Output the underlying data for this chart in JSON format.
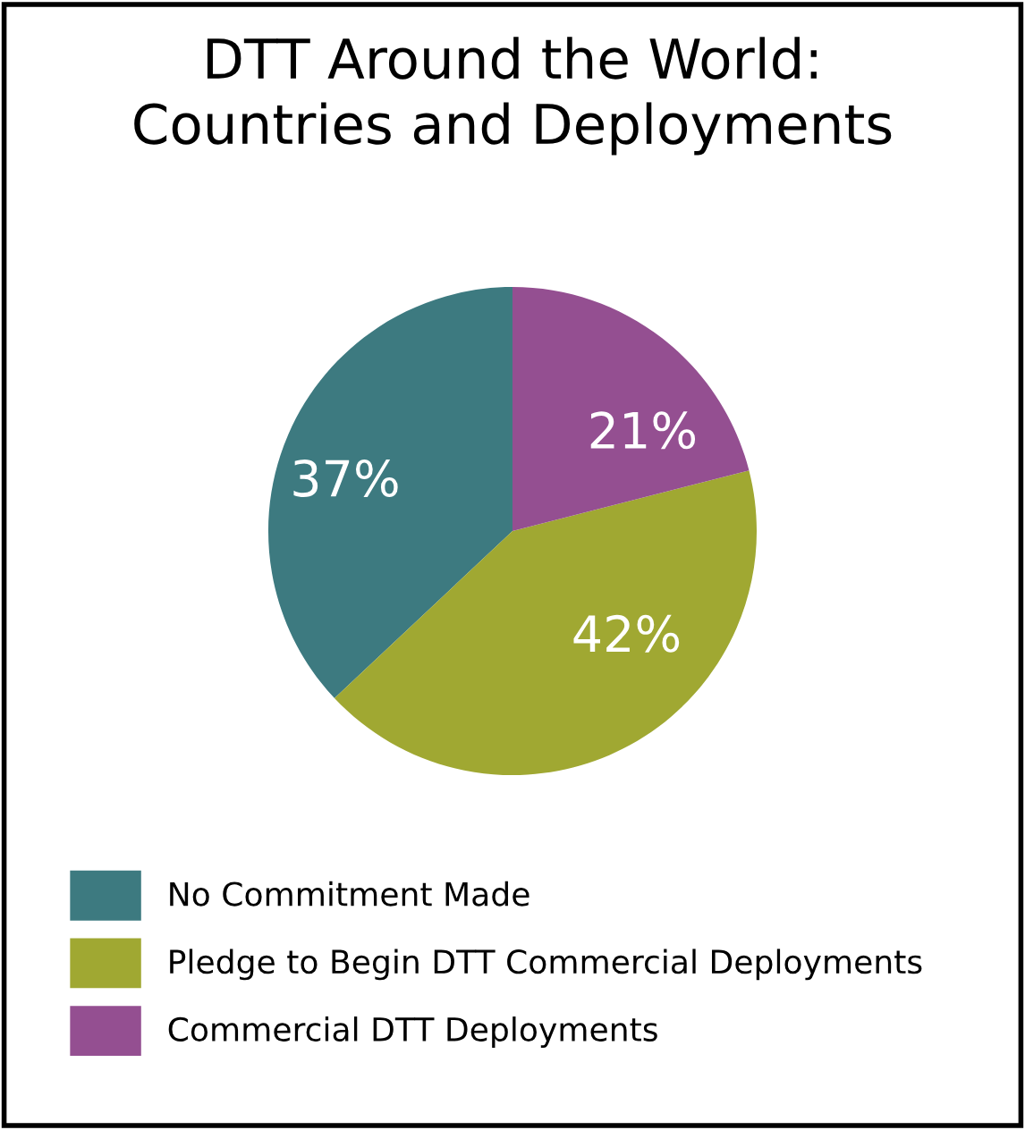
{
  "chart_data": {
    "type": "pie",
    "title": "DTT Around the World:\nCountries and Deployments",
    "categories": [
      "No Commitment Made",
      "Pledge to Begin DTT Commercial Deployments",
      "Commercial DTT Deployments"
    ],
    "values": [
      37,
      42,
      21
    ],
    "colors": [
      "#3d7a80",
      "#a0a832",
      "#944f91"
    ],
    "value_labels": [
      "37%",
      "42%",
      "21%"
    ],
    "legend": "bottom"
  }
}
